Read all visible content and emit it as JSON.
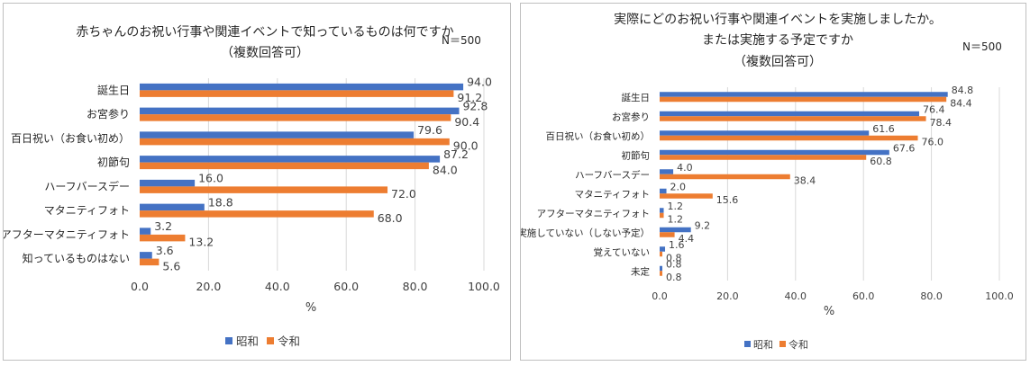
{
  "colors": {
    "showa": "#4472C4",
    "reiwa": "#ED7D31"
  },
  "chart_data": [
    {
      "type": "bar",
      "orientation": "horizontal",
      "title_lines": [
        "赤ちゃんのお祝い行事や関連イベントで知っているものは何ですか",
        "（複数回答可）"
      ],
      "n_label": "N＝500",
      "categories": [
        "誕生日",
        "お宮参り",
        "百日祝い（お食い初め）",
        "初節句",
        "ハーフバースデー",
        "マタニティフォト",
        "アフターマタニティフォト",
        "知っているものはない"
      ],
      "series": [
        {
          "name": "昭和",
          "values": [
            94.0,
            92.8,
            79.6,
            87.2,
            16.0,
            18.8,
            3.2,
            3.6
          ]
        },
        {
          "name": "令和",
          "values": [
            91.2,
            90.4,
            90.0,
            84.0,
            72.0,
            68.0,
            13.2,
            5.6
          ]
        }
      ],
      "xlim": [
        0,
        100
      ],
      "xticks": [
        "0.0",
        "20.0",
        "40.0",
        "60.0",
        "80.0",
        "100.0"
      ],
      "xlabel": "%",
      "legend": "bottom"
    },
    {
      "type": "bar",
      "orientation": "horizontal",
      "title_lines": [
        "実際にどのお祝い行事や関連イベントを実施しましたか。",
        "または実施する予定ですか",
        "（複数回答可）"
      ],
      "n_label": "N＝500",
      "categories": [
        "誕生日",
        "お宮参り",
        "百日祝い（お食い初め）",
        "初節句",
        "ハーフバースデー",
        "マタニティフォト",
        "アフターマタニティフォト",
        "実施していない（しない予定）",
        "覚えていない",
        "未定"
      ],
      "series": [
        {
          "name": "昭和",
          "values": [
            84.8,
            76.4,
            61.6,
            67.6,
            4.0,
            2.0,
            1.2,
            9.2,
            1.6,
            0.8
          ]
        },
        {
          "name": "令和",
          "values": [
            84.4,
            78.4,
            76.0,
            60.8,
            38.4,
            15.6,
            1.2,
            4.4,
            0.8,
            0.8
          ]
        }
      ],
      "xlim": [
        0,
        100
      ],
      "xticks": [
        "0.0",
        "20.0",
        "40.0",
        "60.0",
        "80.0",
        "100.0"
      ],
      "xlabel": "%",
      "legend": "bottom"
    }
  ]
}
